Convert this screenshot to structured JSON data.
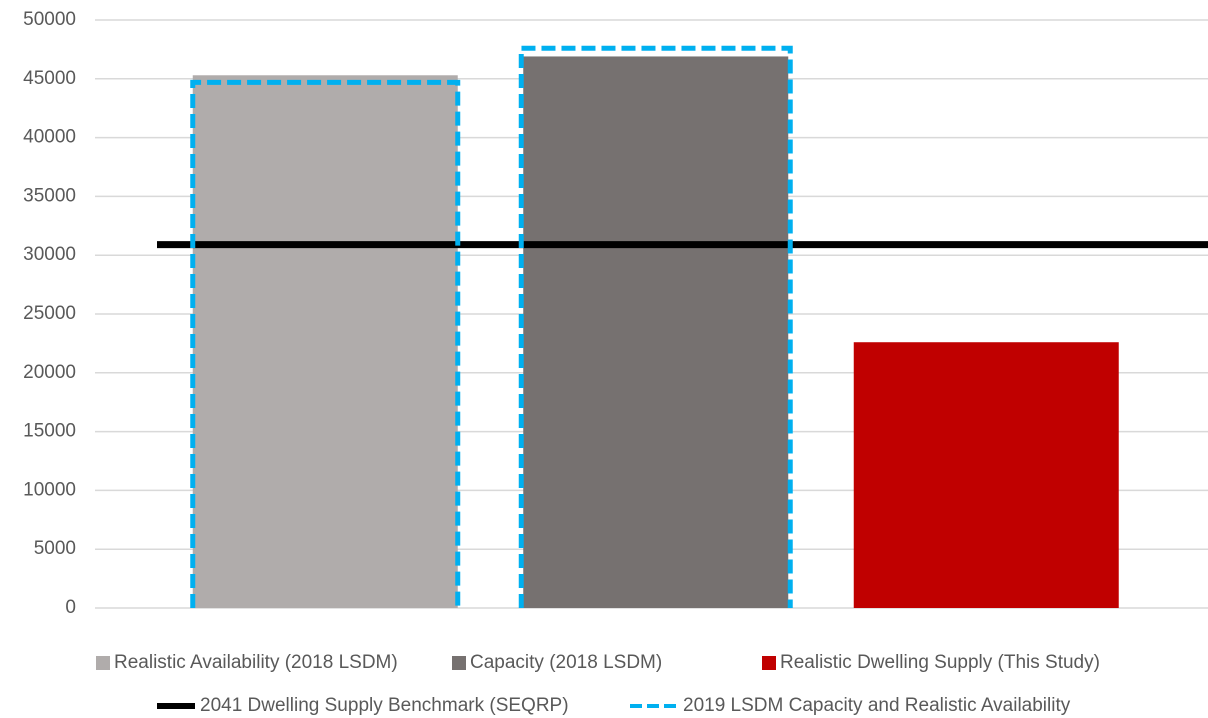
{
  "chart_data": {
    "type": "bar",
    "categories": [
      null,
      null,
      null
    ],
    "ylim": [
      0,
      50000
    ],
    "yticks": [
      0,
      5000,
      10000,
      15000,
      20000,
      25000,
      30000,
      35000,
      40000,
      45000,
      50000
    ],
    "grid": true,
    "legend": "bottom",
    "series": [
      {
        "name": "Realistic Availability (2018 LSDM)",
        "type": "bar",
        "color": "#b0acab",
        "values": [
          45300,
          null,
          null
        ]
      },
      {
        "name": "Capacity (2018 LSDM)",
        "type": "bar",
        "color": "#767170",
        "values": [
          null,
          46900,
          null
        ]
      },
      {
        "name": "Realistic Dwelling Supply (This Study)",
        "type": "bar",
        "color": "#c00000",
        "values": [
          null,
          null,
          22600
        ]
      },
      {
        "name": "2041 Dwelling Supply Benchmark (SEQRP)",
        "type": "line",
        "color": "#000000",
        "value": 30900
      },
      {
        "name": "2019 LSDM Capacity and Realistic Availability",
        "type": "outline",
        "color": "#00b0f0",
        "values": [
          44700,
          47600,
          null
        ]
      }
    ]
  }
}
